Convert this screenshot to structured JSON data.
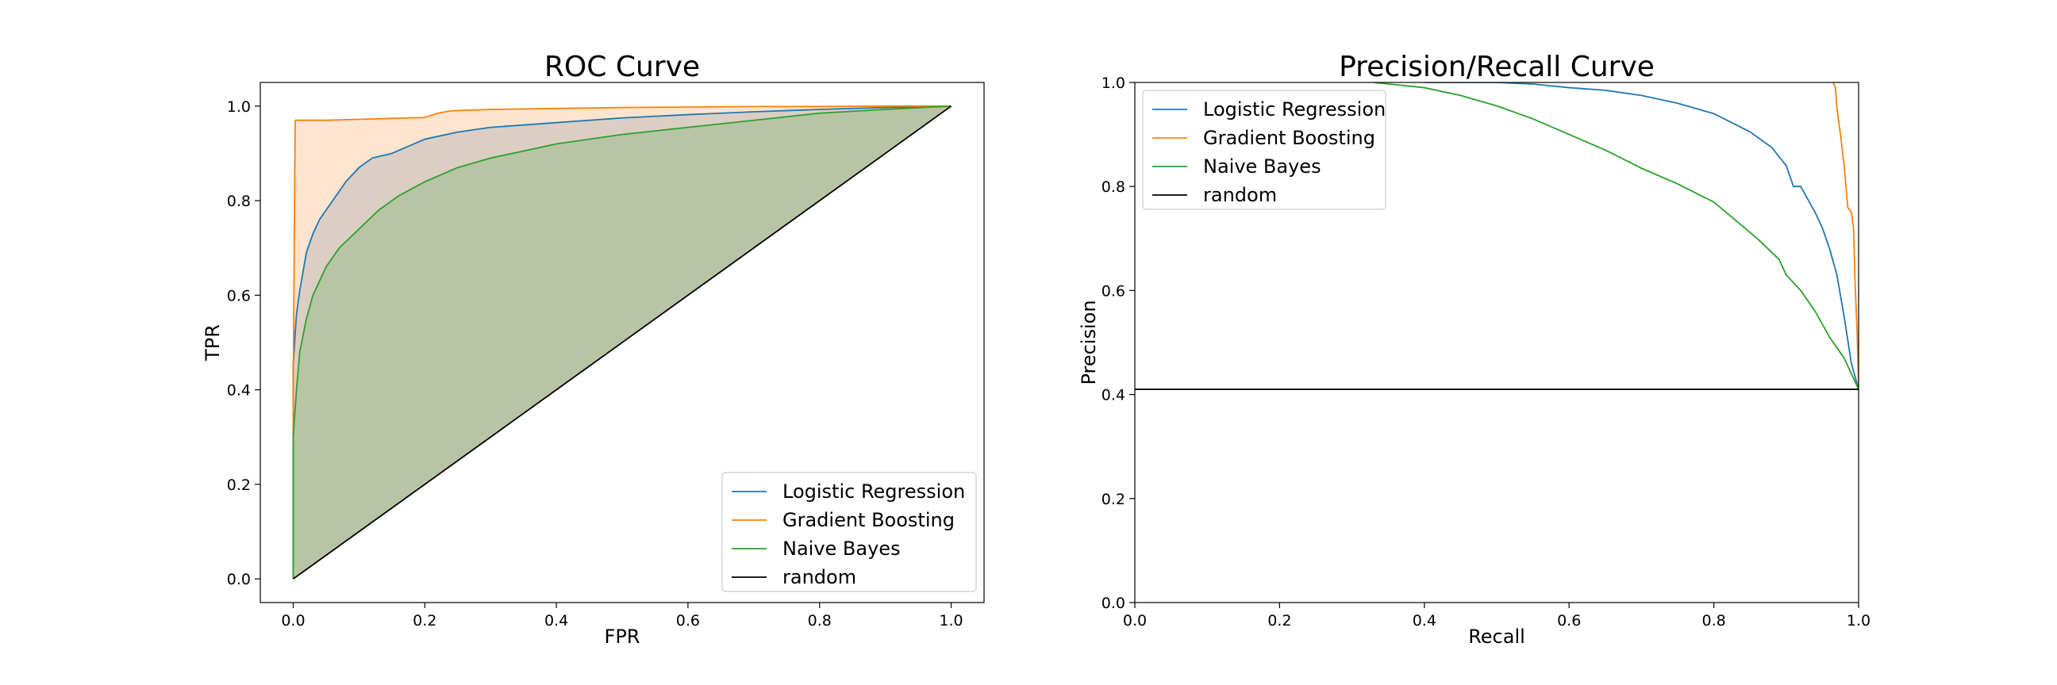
{
  "colors": {
    "logistic": "#1f77b4",
    "boosting": "#ff7f0e",
    "bayes": "#2ca02c",
    "random": "#000000"
  },
  "chart_data": [
    {
      "type": "line",
      "title": "ROC Curve",
      "xlabel": "FPR",
      "ylabel": "TPR",
      "xlim": [
        -0.05,
        1.05
      ],
      "ylim": [
        -0.05,
        1.05
      ],
      "xticks": [
        "0.0",
        "0.2",
        "0.4",
        "0.6",
        "0.8",
        "1.0"
      ],
      "yticks": [
        "0.0",
        "0.2",
        "0.4",
        "0.6",
        "0.8",
        "1.0"
      ],
      "filled_area_under_curves": true,
      "grid": false,
      "legend_position": "lower right",
      "legend": [
        "Logistic Regression",
        "Gradient Boosting",
        "Naive Bayes",
        "random"
      ],
      "series": [
        {
          "name": "Logistic Regression",
          "color": "#1f77b4",
          "x": [
            0,
            0,
            0.003,
            0.005,
            0.01,
            0.015,
            0.02,
            0.03,
            0.04,
            0.05,
            0.06,
            0.08,
            0.1,
            0.12,
            0.15,
            0.2,
            0.25,
            0.3,
            0.4,
            0.5,
            0.6,
            0.7,
            0.8,
            0.9,
            1.0
          ],
          "y": [
            0,
            0.45,
            0.52,
            0.56,
            0.61,
            0.65,
            0.69,
            0.73,
            0.76,
            0.78,
            0.8,
            0.84,
            0.87,
            0.89,
            0.9,
            0.93,
            0.945,
            0.955,
            0.965,
            0.975,
            0.982,
            0.988,
            0.993,
            0.997,
            1.0
          ]
        },
        {
          "name": "Gradient Boosting",
          "color": "#ff7f0e",
          "x": [
            0,
            0,
            0.003,
            0.05,
            0.1,
            0.15,
            0.2,
            0.22,
            0.24,
            0.3,
            0.4,
            0.5,
            0.6,
            0.7,
            0.8,
            0.9,
            1.0
          ],
          "y": [
            0,
            0.4,
            0.97,
            0.97,
            0.972,
            0.974,
            0.976,
            0.985,
            0.99,
            0.993,
            0.995,
            0.997,
            0.998,
            0.999,
            0.999,
            1.0,
            1.0
          ]
        },
        {
          "name": "Naive Bayes",
          "color": "#2ca02c",
          "x": [
            0,
            0,
            0.005,
            0.01,
            0.02,
            0.03,
            0.05,
            0.07,
            0.1,
            0.13,
            0.16,
            0.2,
            0.25,
            0.3,
            0.35,
            0.4,
            0.5,
            0.6,
            0.7,
            0.8,
            0.9,
            1.0
          ],
          "y": [
            0,
            0.3,
            0.4,
            0.48,
            0.55,
            0.6,
            0.66,
            0.7,
            0.74,
            0.78,
            0.81,
            0.84,
            0.87,
            0.89,
            0.905,
            0.92,
            0.94,
            0.955,
            0.97,
            0.985,
            0.993,
            1.0
          ]
        },
        {
          "name": "random",
          "color": "#000000",
          "x": [
            0,
            1
          ],
          "y": [
            0,
            1
          ]
        }
      ]
    },
    {
      "type": "line",
      "title": "Precision/Recall Curve",
      "xlabel": "Recall",
      "ylabel": "Precision",
      "xlim": [
        0,
        1
      ],
      "ylim": [
        0,
        1
      ],
      "xticks": [
        "0.0",
        "0.2",
        "0.4",
        "0.6",
        "0.8",
        "1.0"
      ],
      "yticks": [
        "0.0",
        "0.2",
        "0.4",
        "0.6",
        "0.8",
        "1.0"
      ],
      "grid": false,
      "legend_position": "upper left",
      "legend": [
        "Logistic Regression",
        "Gradient Boosting",
        "Naive Bayes",
        "random"
      ],
      "series": [
        {
          "name": "Logistic Regression",
          "color": "#1f77b4",
          "x": [
            0.4,
            0.5,
            0.55,
            0.6,
            0.65,
            0.7,
            0.75,
            0.8,
            0.85,
            0.88,
            0.9,
            0.91,
            0.92,
            0.94,
            0.95,
            0.96,
            0.97,
            0.98,
            0.99,
            1.0
          ],
          "y": [
            1.0,
            1.0,
            0.997,
            0.99,
            0.985,
            0.975,
            0.96,
            0.94,
            0.905,
            0.875,
            0.84,
            0.8,
            0.8,
            0.75,
            0.72,
            0.68,
            0.63,
            0.55,
            0.46,
            0.41
          ]
        },
        {
          "name": "Gradient Boosting",
          "color": "#ff7f0e",
          "x": [
            0.965,
            0.968,
            0.97,
            0.975,
            0.98,
            0.985,
            0.99,
            0.993,
            0.995,
            0.998,
            1.0
          ],
          "y": [
            1.0,
            0.99,
            0.95,
            0.9,
            0.84,
            0.76,
            0.75,
            0.72,
            0.62,
            0.52,
            0.41
          ]
        },
        {
          "name": "Naive Bayes",
          "color": "#2ca02c",
          "x": [
            0.33,
            0.4,
            0.45,
            0.5,
            0.55,
            0.6,
            0.65,
            0.7,
            0.75,
            0.8,
            0.83,
            0.86,
            0.89,
            0.9,
            0.92,
            0.94,
            0.96,
            0.98,
            1.0
          ],
          "y": [
            1.0,
            0.99,
            0.975,
            0.955,
            0.93,
            0.9,
            0.87,
            0.835,
            0.805,
            0.77,
            0.735,
            0.7,
            0.66,
            0.63,
            0.6,
            0.56,
            0.51,
            0.47,
            0.41
          ]
        },
        {
          "name": "random",
          "color": "#000000",
          "x": [
            0,
            1
          ],
          "y": [
            0.41,
            0.41
          ]
        }
      ]
    }
  ]
}
